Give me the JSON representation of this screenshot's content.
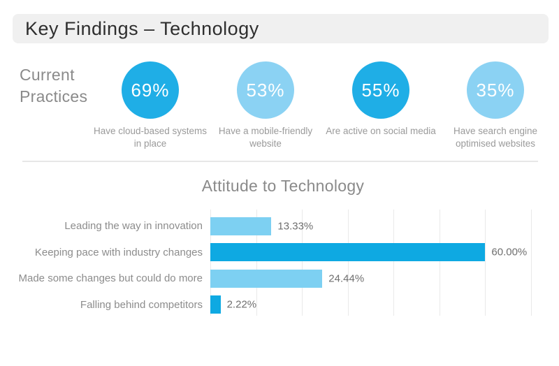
{
  "header": {
    "title": "Key Findings – Technology"
  },
  "current_practices": {
    "label_line1": "Current",
    "label_line2": "Practices",
    "items": [
      {
        "value": "69%",
        "label": "Have cloud-based systems in place",
        "color": "#1faee6"
      },
      {
        "value": "53%",
        "label": "Have a mobile-friendly website",
        "color": "#8bd2f3"
      },
      {
        "value": "55%",
        "label": "Are active on social media",
        "color": "#1faee6"
      },
      {
        "value": "35%",
        "label": "Have search engine optimised websites",
        "color": "#8bd2f3"
      }
    ]
  },
  "chart_data": {
    "type": "bar",
    "orientation": "horizontal",
    "title": "Attitude to Technology",
    "categories": [
      "Leading the way in innovation",
      "Keeping pace with industry changes",
      "Made some changes but could do more",
      "Falling behind competitors"
    ],
    "values": [
      13.33,
      60.0,
      24.44,
      2.22
    ],
    "value_labels": [
      "13.33%",
      "60.00%",
      "24.44%",
      "2.22%"
    ],
    "bar_colors": [
      "#7dd0f2",
      "#0ea9e2",
      "#7dd0f2",
      "#0ea9e2"
    ],
    "xlabel": "",
    "ylabel": "",
    "xlim": [
      0,
      70
    ],
    "gridline_step": 10,
    "grid": true,
    "legend": false
  },
  "colors": {
    "blue_dark": "#0ea9e2",
    "blue_light": "#8bd2f3",
    "header_bg": "#f0f0f0",
    "divider": "#e7e7e7"
  }
}
